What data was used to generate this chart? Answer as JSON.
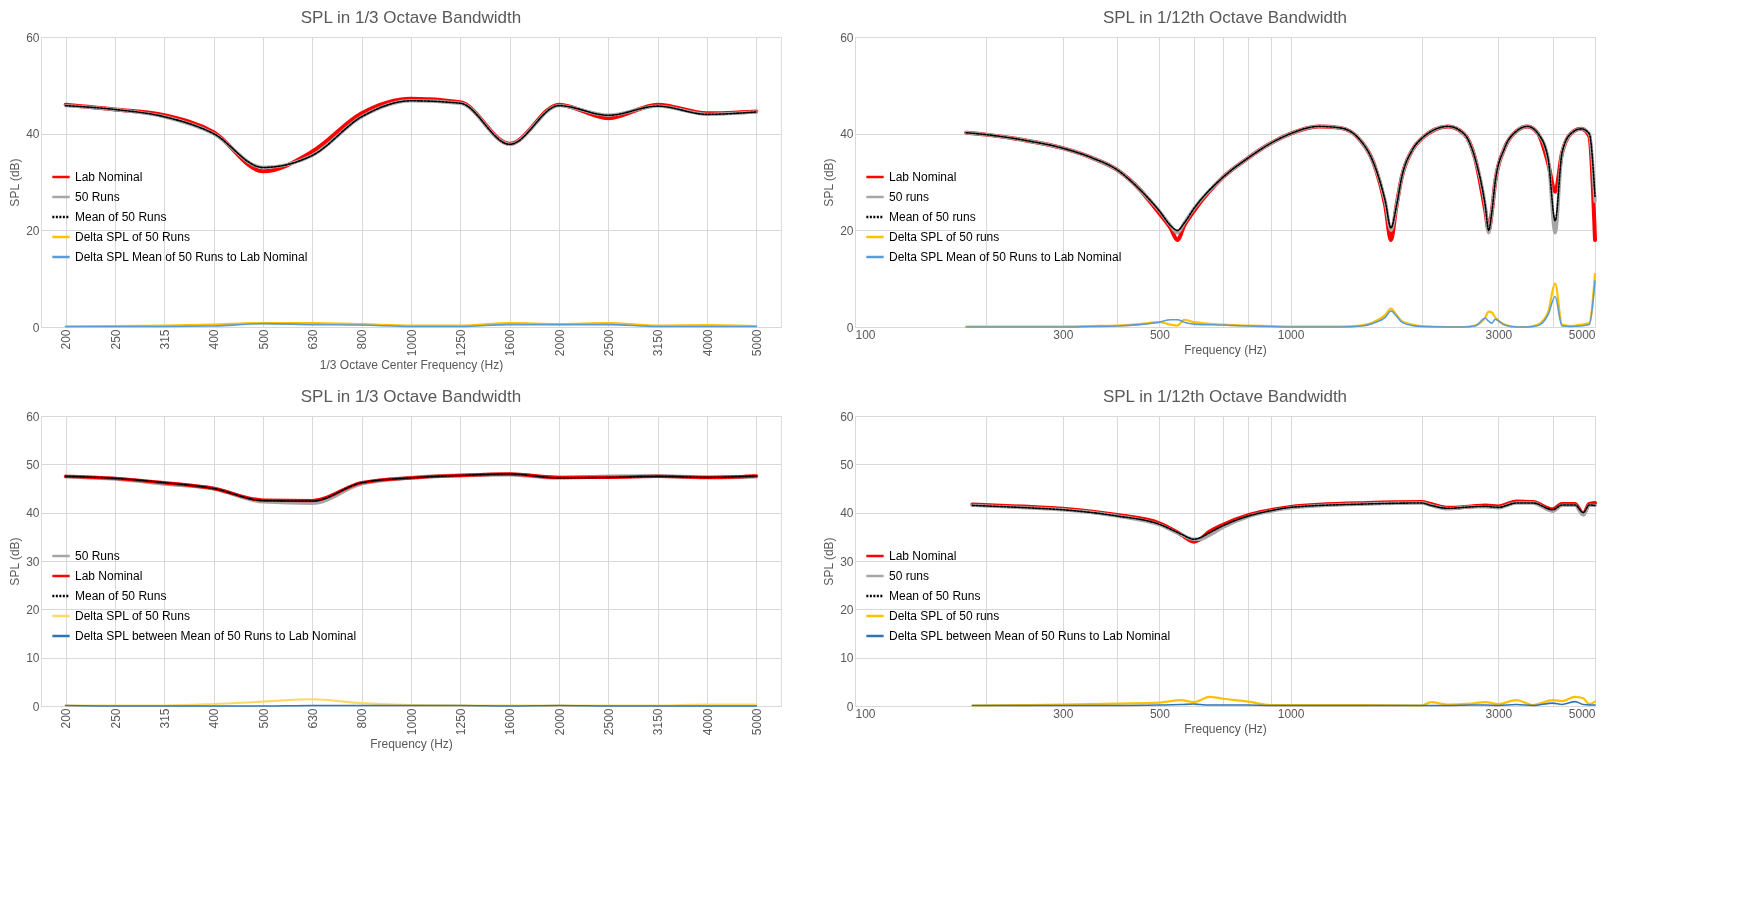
{
  "chart_data": [
    {
      "type": "line",
      "title": "SPL in 1/3 Octave Bandwidth",
      "xlabel": "1/3 Octave Center Frequency (Hz)",
      "ylabel": "SPL (dB)",
      "categories": [
        "200",
        "250",
        "315",
        "400",
        "500",
        "630",
        "800",
        "1000",
        "1250",
        "1600",
        "2000",
        "2500",
        "3150",
        "4000",
        "5000"
      ],
      "ylim": [
        0,
        60
      ],
      "yticks": [
        0,
        20,
        40,
        60
      ],
      "grid": true,
      "legend": "left",
      "series": [
        {
          "name": "Lab Nominal",
          "color": "#ff0000",
          "line_style": "solid",
          "values": [
            46,
            45,
            43.8,
            40.3,
            32.2,
            36.3,
            44.2,
            47.2,
            46.5,
            37.9,
            46,
            43.2,
            46,
            44.2,
            44.6
          ]
        },
        {
          "name": "50 Runs",
          "color": "#a6a6a6",
          "line_style": "solid",
          "values": [
            45.8,
            45,
            43.5,
            40,
            33,
            35.5,
            43.5,
            46.8,
            46.3,
            37.8,
            45.8,
            43.8,
            45.7,
            44,
            44.5
          ]
        },
        {
          "name": "Mean of 50 Runs",
          "color": "#000000",
          "line_style": "dotted",
          "values": [
            45.8,
            45,
            43.5,
            40,
            33,
            35.5,
            43.5,
            46.8,
            46.3,
            37.8,
            45.8,
            43.8,
            45.7,
            44,
            44.5
          ]
        },
        {
          "name": "Delta SPL of 50 Runs",
          "color": "#ffc000",
          "line_style": "solid",
          "values": [
            0.1,
            0.2,
            0.3,
            0.5,
            0.8,
            0.8,
            0.6,
            0.3,
            0.3,
            0.8,
            0.6,
            0.8,
            0.3,
            0.4,
            0.2
          ]
        },
        {
          "name": "Delta SPL Mean of 50 Runs to Lab Nominal",
          "color": "#5b9bd5",
          "line_style": "solid",
          "values": [
            0.1,
            0.1,
            0.1,
            0.2,
            0.7,
            0.5,
            0.4,
            0.1,
            0.1,
            0.5,
            0.5,
            0.5,
            0.1,
            0.1,
            0.1
          ]
        }
      ]
    },
    {
      "type": "line",
      "title": "SPL in 1/12th Octave Bandwidth",
      "xlabel": "Frequency (Hz)",
      "ylabel": "SPL (dB)",
      "log": "x",
      "x": [
        180,
        200,
        250,
        300,
        350,
        400,
        450,
        500,
        530,
        550,
        570,
        600,
        700,
        800,
        900,
        1000,
        1160,
        1300,
        1450,
        1550,
        1650,
        1700,
        1750,
        1800,
        1900,
        2000,
        2300,
        2500,
        2650,
        2800,
        2850,
        2900,
        2950,
        3100,
        3300,
        3500,
        3700,
        3900,
        4050,
        4200,
        4400,
        4650,
        4850,
        5000
      ],
      "xlim": [
        100,
        5000
      ],
      "xticks": [
        100,
        {
          "value": 200,
          "label": null
        },
        300,
        {
          "value": 400,
          "label": null
        },
        500,
        {
          "value": 600,
          "label": null
        },
        {
          "value": 700,
          "label": null
        },
        {
          "value": 800,
          "label": null
        },
        {
          "value": 900,
          "label": null
        },
        1000,
        {
          "value": 2000,
          "label": null
        },
        3000,
        {
          "value": 4000,
          "label": null
        },
        5000
      ],
      "ylim": [
        0,
        60
      ],
      "yticks": [
        0,
        20,
        40,
        60
      ],
      "grid": true,
      "legend": "left",
      "series": [
        {
          "name": "Lab Nominal",
          "color": "#ff0000",
          "line_style": "solid",
          "values": [
            40.2,
            39.8,
            38.5,
            37,
            35,
            32.5,
            28.5,
            23.5,
            20.5,
            18,
            21,
            24,
            31,
            35,
            38,
            40,
            41.5,
            41.2,
            38.5,
            34,
            25,
            18,
            25,
            31,
            36.5,
            39,
            41.5,
            40,
            35,
            24,
            20,
            24,
            30,
            37,
            40.5,
            41.5,
            40,
            34,
            28,
            36,
            40,
            41,
            39.5,
            18
          ]
        },
        {
          "name": "50 runs",
          "color": "#a6a6a6",
          "line_style": "solid",
          "values": [
            40.2,
            39.8,
            38.5,
            37,
            35,
            32.5,
            28.5,
            24,
            21,
            19.5,
            21.5,
            24.5,
            31,
            35,
            38,
            40,
            41.5,
            41.2,
            38.5,
            34,
            26,
            20,
            25,
            31,
            36.5,
            39,
            41.5,
            40,
            35,
            25,
            19.5,
            24,
            30,
            37,
            40.5,
            41.5,
            40,
            35,
            19.5,
            36,
            40,
            41,
            40,
            26
          ]
        },
        {
          "name": "Mean of 50 runs",
          "color": "#000000",
          "line_style": "dotted",
          "values": [
            40.2,
            39.8,
            38.5,
            37,
            35,
            32.5,
            28.5,
            24,
            21,
            20,
            21.5,
            24.5,
            31,
            35,
            38,
            40,
            41.5,
            41.2,
            38.5,
            34,
            26,
            20.5,
            25,
            31,
            36.5,
            39,
            41.5,
            40,
            35,
            25,
            20,
            24,
            30,
            37,
            40.5,
            41.5,
            40,
            35,
            22,
            36,
            40,
            41,
            40,
            27
          ]
        },
        {
          "name": "Delta SPL of 50 runs",
          "color": "#ffc000",
          "line_style": "solid",
          "values": [
            0.1,
            0.1,
            0.1,
            0.1,
            0.2,
            0.3,
            0.6,
            1.0,
            0.5,
            0.3,
            1.5,
            1.0,
            0.5,
            0.3,
            0.2,
            0.1,
            0.1,
            0.1,
            0.3,
            1.0,
            2.5,
            3.8,
            2.5,
            1.2,
            0.5,
            0.2,
            0,
            0,
            0.3,
            2.0,
            3.2,
            3.0,
            2.0,
            0.5,
            0,
            0,
            0.5,
            3.0,
            9.0,
            0.5,
            0.2,
            0.5,
            0.8,
            11
          ]
        },
        {
          "name": "Delta SPL Mean of 50 Runs to Lab Nominal",
          "color": "#5b9bd5",
          "line_style": "solid",
          "values": [
            0,
            0,
            0,
            0,
            0.1,
            0.2,
            0.5,
            1.0,
            1.5,
            1.5,
            1.0,
            0.6,
            0.4,
            0.2,
            0.1,
            0,
            0,
            0,
            0.2,
            0.8,
            2.0,
            3.3,
            2.3,
            1.0,
            0.3,
            0.1,
            0,
            0,
            0.2,
            1.8,
            1.2,
            0.8,
            1.6,
            0.4,
            0,
            0,
            0.3,
            2.5,
            6.3,
            0.2,
            0.1,
            0.2,
            0.5,
            9.5
          ]
        }
      ]
    },
    {
      "type": "line",
      "title": "SPL in 1/3 Octave Bandwidth",
      "xlabel": "Frequency (Hz)",
      "ylabel": "SPL (dB)",
      "categories": [
        "200",
        "250",
        "315",
        "400",
        "500",
        "630",
        "800",
        "1000",
        "1250",
        "1600",
        "2000",
        "2500",
        "3150",
        "4000",
        "5000"
      ],
      "ylim": [
        0,
        60
      ],
      "yticks": [
        0,
        10,
        20,
        30,
        40,
        50,
        60
      ],
      "grid": true,
      "legend": "left",
      "series": [
        {
          "name": "50 Runs",
          "color": "#a6a6a6",
          "line_style": "solid",
          "values": [
            47.5,
            47,
            46,
            45,
            42.3,
            42,
            46,
            47.2,
            47.7,
            47.9,
            47.2,
            47.5,
            47.6,
            47.3,
            47.5
          ]
        },
        {
          "name": "Lab Nominal",
          "color": "#ff0000",
          "line_style": "solid",
          "values": [
            47.5,
            47.1,
            46.2,
            45,
            42.6,
            42.5,
            46.2,
            47.2,
            47.7,
            48,
            47.3,
            47.3,
            47.5,
            47.3,
            47.6
          ]
        },
        {
          "name": "Mean of 50 Runs",
          "color": "#000000",
          "line_style": "dotted",
          "values": [
            47.5,
            47.1,
            46.2,
            45,
            42.5,
            42.4,
            46.2,
            47.2,
            47.7,
            48,
            47.2,
            47.3,
            47.5,
            47.3,
            47.6
          ]
        },
        {
          "name": "Delta SPL of 50 Runs",
          "color": "#ffd966",
          "line_style": "solid",
          "values": [
            0.1,
            0.1,
            0.1,
            0.4,
            0.9,
            1.4,
            0.6,
            0.2,
            0.1,
            0.1,
            0.1,
            0.1,
            0.1,
            0.3,
            0.3
          ]
        },
        {
          "name": "Delta SPL between Mean of 50 Runs to Lab Nominal",
          "color": "#2e75b6",
          "line_style": "solid",
          "values": [
            0.1,
            0,
            0,
            0,
            0,
            0.1,
            0.1,
            0.1,
            0.1,
            0,
            0.1,
            0,
            0,
            0,
            0
          ]
        }
      ]
    },
    {
      "type": "line",
      "title": "SPL in 1/12th Octave Bandwidth",
      "xlabel": "Frequency (Hz)",
      "ylabel": "SPL (dB)",
      "log": "x",
      "x": [
        186,
        250,
        300,
        400,
        500,
        560,
        600,
        620,
        650,
        700,
        800,
        900,
        1000,
        1500,
        2000,
        2100,
        2300,
        2600,
        2800,
        3000,
        3300,
        3600,
        4000,
        4200,
        4500,
        4700,
        4850,
        5000
      ],
      "xlim": [
        100,
        5000
      ],
      "xticks": [
        100,
        {
          "value": 200,
          "label": null
        },
        300,
        {
          "value": 400,
          "label": null
        },
        500,
        {
          "value": 600,
          "label": null
        },
        {
          "value": 700,
          "label": null
        },
        {
          "value": 800,
          "label": null
        },
        {
          "value": 900,
          "label": null
        },
        1000,
        {
          "value": 2000,
          "label": null
        },
        3000,
        {
          "value": 4000,
          "label": null
        },
        5000
      ],
      "ylim": [
        0,
        60
      ],
      "yticks": [
        0,
        10,
        20,
        30,
        40,
        50,
        60
      ],
      "grid": true,
      "legend": "left",
      "series": [
        {
          "name": "Lab Nominal",
          "color": "#ff0000",
          "line_style": "solid",
          "values": [
            41.7,
            41.2,
            40.8,
            39.5,
            37.8,
            35.5,
            34,
            34.5,
            36,
            37.5,
            39.5,
            40.5,
            41.2,
            42,
            42.2,
            41.8,
            41,
            41.3,
            41.5,
            41.3,
            42.3,
            42.2,
            40.7,
            41.8,
            41.8,
            39.7,
            41.8,
            42
          ]
        },
        {
          "name": "50 runs",
          "color": "#a6a6a6",
          "line_style": "solid",
          "values": [
            41.5,
            41,
            40.6,
            39.3,
            37.5,
            35.5,
            34.5,
            34.5,
            35.3,
            37,
            39.2,
            40.3,
            41,
            41.8,
            42,
            41.5,
            40.8,
            41.2,
            41.2,
            41,
            42,
            42,
            40.3,
            41.5,
            41.5,
            39.5,
            41.5,
            41.5
          ]
        },
        {
          "name": "Mean of 50 Runs",
          "color": "#000000",
          "line_style": "dotted",
          "values": [
            41.5,
            41,
            40.6,
            39.3,
            37.6,
            35.6,
            34.5,
            34.8,
            35.8,
            37.3,
            39.3,
            40.4,
            41.1,
            41.8,
            42,
            41.5,
            40.9,
            41.2,
            41.3,
            41.1,
            42,
            42,
            40.6,
            41.6,
            41.6,
            40,
            41.6,
            41.5
          ]
        },
        {
          "name": "Delta SPL of 50 runs",
          "color": "#ffc000",
          "line_style": "solid",
          "values": [
            0.1,
            0.2,
            0.3,
            0.5,
            0.7,
            1.2,
            0.8,
            1.2,
            1.9,
            1.5,
            0.9,
            0.2,
            0.2,
            0.2,
            0.1,
            0.8,
            0.3,
            0.5,
            0.8,
            0.4,
            1.2,
            0.2,
            1.2,
            1.0,
            1.9,
            1.6,
            0.4,
            0.9
          ]
        },
        {
          "name": "Delta SPL between Mean of 50 Runs to Lab Nominal",
          "color": "#2e75b6",
          "line_style": "solid",
          "values": [
            0.1,
            0.1,
            0.1,
            0.1,
            0.2,
            0.3,
            0.4,
            0.3,
            0.2,
            0.2,
            0.2,
            0.1,
            0.1,
            0.1,
            0.1,
            0.1,
            0.1,
            0.2,
            0.2,
            0.1,
            0.3,
            0.1,
            0.6,
            0.3,
            0.9,
            0.3,
            0.2,
            0.2
          ]
        }
      ]
    }
  ]
}
